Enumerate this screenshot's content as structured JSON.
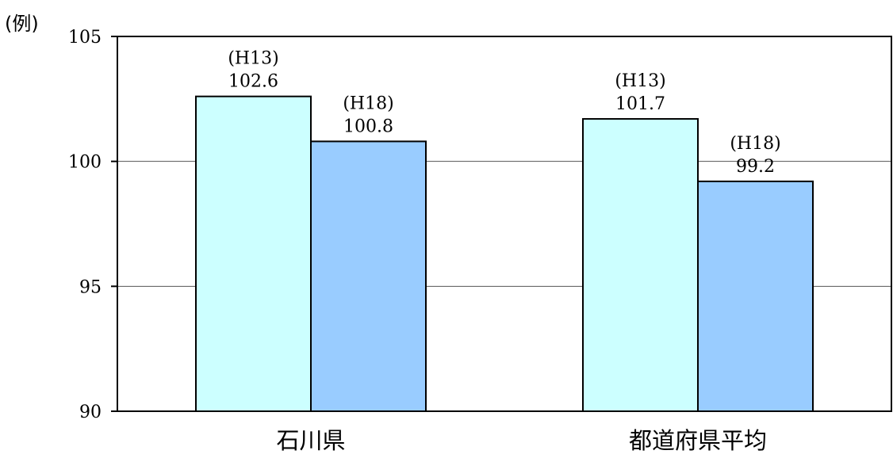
{
  "chart_data": {
    "type": "bar",
    "ylabel": "(例)",
    "ylim": [
      90,
      105
    ],
    "yticks": [
      90,
      95,
      100,
      105
    ],
    "grid": true,
    "categories": [
      "石川県",
      "都道府県平均"
    ],
    "series": [
      {
        "name": "",
        "color": "#ccffff",
        "values": [
          102.6,
          101.7
        ],
        "labels": [
          "(H13)",
          "(H13)"
        ]
      },
      {
        "name": "",
        "color": "#99ccff",
        "values": [
          100.8,
          99.2
        ],
        "labels": [
          "(H18)",
          "(H18)"
        ]
      }
    ]
  }
}
